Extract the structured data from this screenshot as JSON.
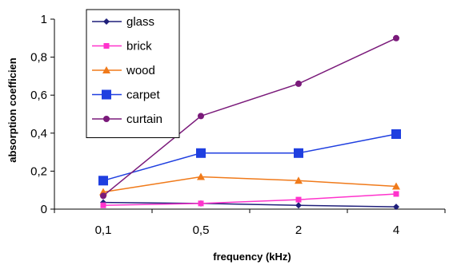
{
  "chart_data": {
    "type": "line",
    "title": "",
    "xlabel": "frequency (kHz)",
    "ylabel": "absorption coefficien",
    "categories": [
      "0,1",
      "0,5",
      "2",
      "4"
    ],
    "ylim": [
      0,
      1
    ],
    "yticks": [
      "0",
      "0,2",
      "0,4",
      "0,6",
      "0,8",
      "1"
    ],
    "grid": false,
    "legend": "top-left",
    "series": [
      {
        "name": "glass",
        "color": "#1f1f7a",
        "marker": "diamond",
        "values": [
          0.035,
          0.03,
          0.02,
          0.012
        ]
      },
      {
        "name": "brick",
        "color": "#ff33cc",
        "marker": "square-small",
        "values": [
          0.02,
          0.03,
          0.05,
          0.08
        ]
      },
      {
        "name": "wood",
        "color": "#f07a1a",
        "marker": "triangle",
        "values": [
          0.09,
          0.17,
          0.15,
          0.12
        ]
      },
      {
        "name": "carpet",
        "color": "#1f3fe0",
        "marker": "square",
        "values": [
          0.15,
          0.295,
          0.295,
          0.395
        ]
      },
      {
        "name": "curtain",
        "color": "#7a1a7a",
        "marker": "circle",
        "values": [
          0.07,
          0.49,
          0.66,
          0.9
        ]
      }
    ]
  }
}
